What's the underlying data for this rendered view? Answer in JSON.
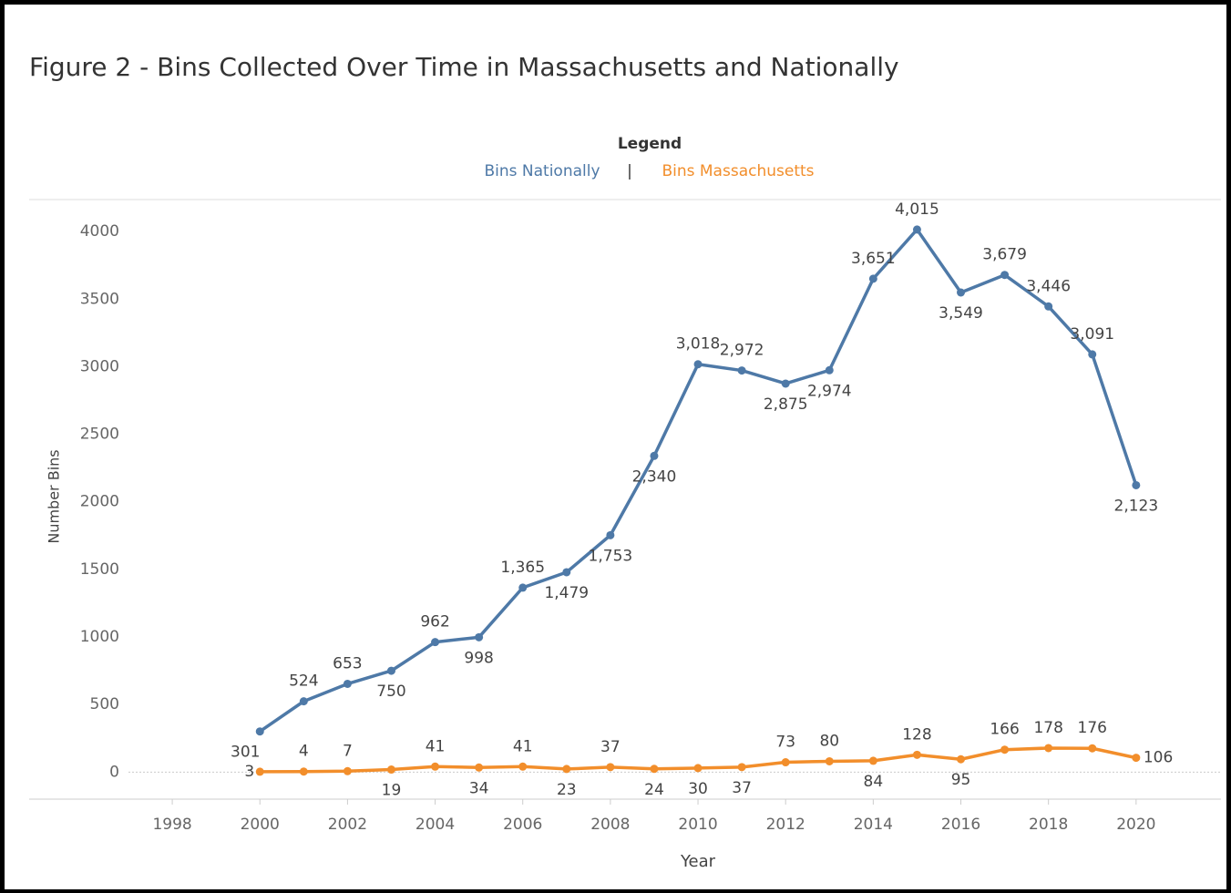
{
  "chart_data": {
    "type": "line",
    "title": "Figure 2 - Bins Collected Over Time in Massachusetts and Nationally",
    "legend_title": "Legend",
    "legend_separator": "|",
    "x_label": "Year",
    "y_label": "Number Bins",
    "x": [
      2000,
      2001,
      2002,
      2003,
      2004,
      2005,
      2006,
      2007,
      2008,
      2009,
      2010,
      2011,
      2012,
      2013,
      2014,
      2015,
      2016,
      2017,
      2018,
      2019,
      2020
    ],
    "series": [
      {
        "name": "Bins Nationally",
        "color": "#4e79a7",
        "values": [
          301,
          524,
          653,
          750,
          962,
          998,
          1365,
          1479,
          1753,
          2340,
          3018,
          2972,
          2875,
          2974,
          3651,
          4015,
          3549,
          3679,
          3446,
          3091,
          2123
        ],
        "value_labels": [
          "301",
          "524",
          "653",
          "750",
          "962",
          "998",
          "1,365",
          "1,479",
          "1,753",
          "2,340",
          "3,018",
          "2,972",
          "2,875",
          "2,974",
          "3,651",
          "4,015",
          "3,549",
          "3,679",
          "3,446",
          "3,091",
          "2,123"
        ]
      },
      {
        "name": "Bins Massachusetts",
        "color": "#f28e2b",
        "values": [
          3,
          4,
          7,
          19,
          41,
          34,
          41,
          23,
          37,
          24,
          30,
          37,
          73,
          80,
          84,
          128,
          95,
          166,
          178,
          176,
          106
        ]
      }
    ],
    "xlim": [
      1997,
      2022
    ],
    "xticks": [
      1998,
      2000,
      2002,
      2004,
      2006,
      2008,
      2010,
      2012,
      2014,
      2016,
      2018,
      2020
    ],
    "ylim": [
      -200,
      4230
    ],
    "yticks": [
      0,
      500,
      1000,
      1500,
      2000,
      2500,
      3000,
      3500,
      4000
    ]
  }
}
